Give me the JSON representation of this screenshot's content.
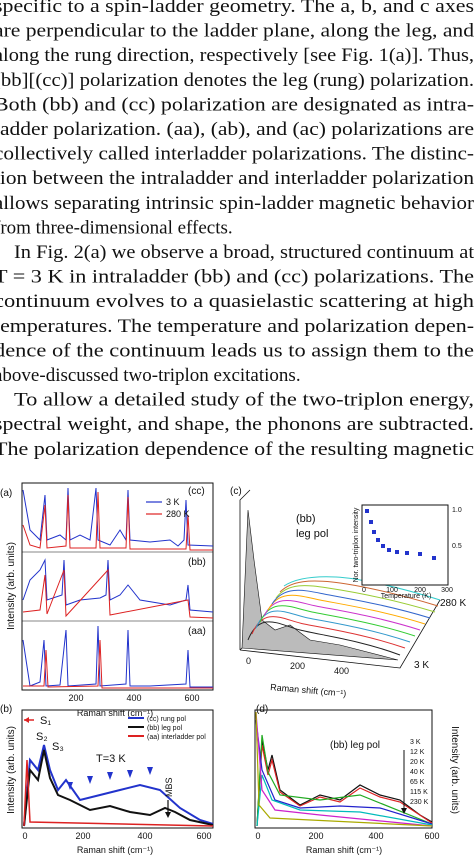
{
  "text": {
    "lines": [
      "specific to a spin-ladder geometry. The a, b, and c axes",
      "are perpendicular to the ladder plane, along the leg, and",
      "along the rung direction, respectively [see Fig. 1(a)]. Thus,",
      "[bb][(cc)] polarization denotes the leg (rung) polarization.",
      "Both (bb) and (cc) polarization are designated as intra-",
      "ladder polarization. (aa), (ab), and (ac) polarizations are",
      "collectively called interladder polarizations. The distinc-",
      "tion between the intraladder and interladder polarization",
      "allows separating intrinsic spin-ladder magnetic behavior",
      "from three-dimensional effects.",
      "In Fig. 2(a) we observe a broad, structured continuum at",
      "T = 3 K in intraladder (bb) and (cc) polarizations. The",
      "continuum evolves to a quasielastic scattering at high",
      "temperatures. The temperature and polarization depen-",
      "dence of the continuum leads us to assign them to the",
      "above-discussed two-triplon excitations.",
      "To allow a detailed study of the two-triplon energy,",
      "spectral weight, and shape, the phonons are subtracted.",
      "The polarization dependence of the resulting magnetic"
    ]
  },
  "figure": {
    "a": {
      "label": "(a)",
      "cc": "(cc)",
      "t1": "3 K",
      "t2": "280 K",
      "bb": "(bb)",
      "aa": "(aa)",
      "ylabel": "Intensity (arb. units)",
      "xlabel": "Raman shift (cm⁻¹)",
      "ticks": [
        "200",
        "400",
        "600"
      ]
    },
    "c": {
      "label": "(c)",
      "pol1": "(bb)",
      "pol2": "leg pol",
      "thigh": "280 K",
      "tlow": "3 K",
      "xlabel": "Raman shift (cm⁻¹)",
      "ticks": [
        "0",
        "200",
        "400"
      ],
      "inset_ylabel": "Nor. two-triplon intensity",
      "inset_xlabel": "Temperature (K)",
      "inset_xticks": [
        "0",
        "100",
        "200",
        "300"
      ],
      "inset_yticks": [
        "1.0",
        "0.5"
      ]
    },
    "b": {
      "label": "(b)",
      "s1": "S₁",
      "s2": "S₂",
      "s3": "S₃",
      "temp": "T=3 K",
      "mbs": "MBS",
      "legend": [
        "(cc) rung pol",
        "(bb) leg pol",
        "(aa) interladder pol"
      ],
      "ylabel": "Intensity (arb. units)",
      "xlabel": "Raman shift (cm⁻¹)",
      "ticks": [
        "0",
        "200",
        "400",
        "600"
      ]
    },
    "d": {
      "label": "(d)",
      "pol": "(bb) leg pol",
      "temps": [
        "3 K",
        "12 K",
        "20 K",
        "40 K",
        "65 K",
        "115 K",
        "230 K"
      ],
      "ylabel": "Intensity (arb. units)",
      "xlabel": "Raman shift (cm⁻¹)",
      "ticks": [
        "0",
        "200",
        "400",
        "600"
      ]
    }
  }
}
